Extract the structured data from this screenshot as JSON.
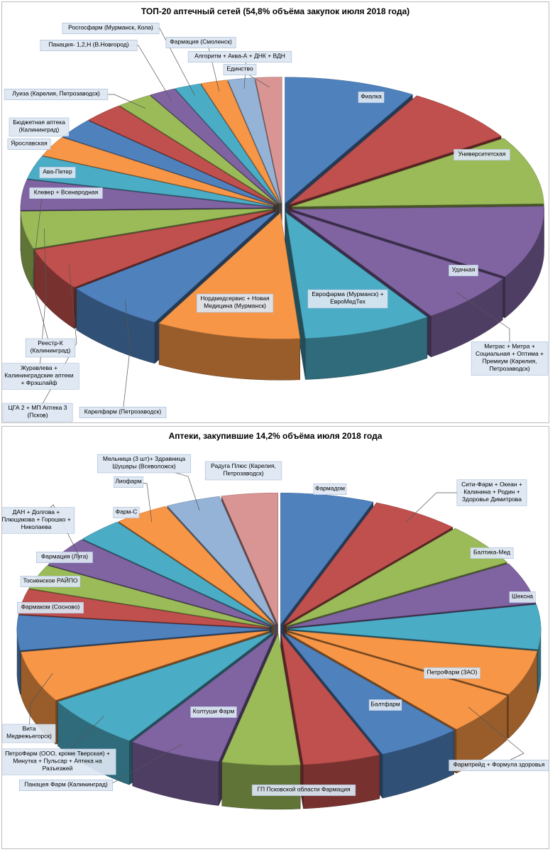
{
  "chart_data": [
    {
      "type": "pie",
      "title": "ТОП-20 аптечный сетей (54,8% объёма закупок июля 2018 года)",
      "categories": [
        "Фиалка",
        "Университетская",
        "",
        "Удачная",
        "Митрас + Митра + Социальная + Оптима + Премиум (Карелия, Петрозаводск)",
        "Еврофарма (Мурманск) + ЕвроМедТех",
        "Нордмедсервис + Новая Медицина (Мурманск)",
        "Карелфарм (Петрозаводск)",
        "ЦГА 2 + МП Аптека 3 (Псков)",
        "Журавлева + Калининградские аптеки + Фрэшлайф",
        "Реестр-К (Калининград)",
        "Клевер + Всенародная",
        "Ава-Петер",
        "Ярославская",
        "Бюджетная аптека (Калининград)",
        "Луиза (Карелия, Петрозаводск)",
        "Панацея- 1,2,Н (В.Новгород)",
        "Росгосфарм (Мурманск, Кола)",
        "Фармация (Смоленск)",
        "Алгоритм + Аква-А + ДНК + ВДН",
        "Единство"
      ],
      "values": [
        8.5,
        7.5,
        8.8,
        9.4,
        6.6,
        8.3,
        9.3,
        6.6,
        5.4,
        4.8,
        3.9,
        3.0,
        2.6,
        2.6,
        2.6,
        2.3,
        1.7,
        1.7,
        1.7,
        1.7,
        1.7
      ],
      "colors": [
        "#4f81bd",
        "#c0504d",
        "#9bbb59",
        "#8064a2",
        "#8064a2",
        "#4bacc6",
        "#f79646",
        "#4f81bd",
        "#c0504d",
        "#9bbb59",
        "#8064a2",
        "#4bacc6",
        "#f79646",
        "#4f81bd",
        "#c0504d",
        "#9bbb59",
        "#8064a2",
        "#4bacc6",
        "#f79646",
        "#95b3d7",
        "#d99594"
      ],
      "style": "exploded 3D pie"
    },
    {
      "type": "pie",
      "title": "Аптеки, закупившие 14,2% объёма июля 2018 года",
      "categories": [
        "Фармадом",
        "Сити-Фарм + Океан + Калинина + Родин + Здоровье Димитрова",
        "Балтика-Мед",
        "Шексна",
        "",
        "ПетроФарм (ЗАО)",
        "Фармтрейд + Формула здоровья",
        "Балтфарм",
        "ГП Псковской области Фармация",
        "Колтуши Фарм",
        "Панацея Фарм (Калининград)",
        "ПетроФарм (ООО, кроме Тверская) + Минутка + Пульсар + Аптека на Разъезжей",
        "Вита Медвежьегорск)",
        "Фармаком (Сосново)",
        "Тосненское РАЙПО",
        "Фармация (Луга)",
        "ДАН + Долгова + Плющакова + Горошко + Николаева",
        "Фарм-С",
        "Лиофарм",
        "Мельница (3 шт)+ Здравница Шушары (Всеволожск)",
        "Радуга Плюс (Карелия, Петрозаводск)"
      ],
      "values": [
        6.0,
        5.7,
        5.3,
        5.1,
        5.5,
        5.6,
        5.2,
        5.4,
        5.0,
        5.0,
        6.0,
        6.6,
        6.3,
        4.3,
        3.1,
        3.0,
        3.7,
        3.0,
        3.5,
        3.5,
        3.6
      ],
      "colors": [
        "#4f81bd",
        "#c0504d",
        "#9bbb59",
        "#8064a2",
        "#4bacc6",
        "#f79646",
        "#f79646",
        "#4f81bd",
        "#c0504d",
        "#9bbb59",
        "#8064a2",
        "#4bacc6",
        "#f79646",
        "#4f81bd",
        "#c0504d",
        "#9bbb59",
        "#8064a2",
        "#4bacc6",
        "#f79646",
        "#95b3d7",
        "#d99594"
      ],
      "style": "exploded 3D pie"
    }
  ]
}
